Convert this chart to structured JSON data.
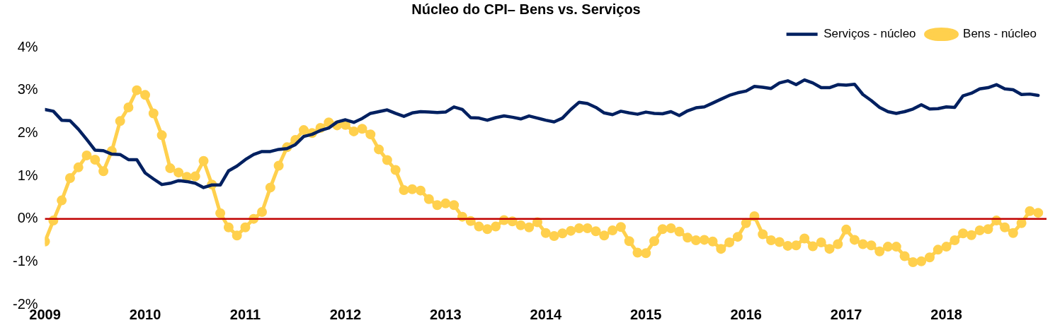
{
  "chart_data": {
    "type": "line",
    "title": "Núcleo do CPI– Bens vs. Serviços",
    "x": [
      "2009-01",
      "2009-02",
      "2009-03",
      "2009-04",
      "2009-05",
      "2009-06",
      "2009-07",
      "2009-08",
      "2009-09",
      "2009-10",
      "2009-11",
      "2009-12",
      "2010-01",
      "2010-02",
      "2010-03",
      "2010-04",
      "2010-05",
      "2010-06",
      "2010-07",
      "2010-08",
      "2010-09",
      "2010-10",
      "2010-11",
      "2010-12",
      "2011-01",
      "2011-02",
      "2011-03",
      "2011-04",
      "2011-05",
      "2011-06",
      "2011-07",
      "2011-08",
      "2011-09",
      "2011-10",
      "2011-11",
      "2011-12",
      "2012-01",
      "2012-02",
      "2012-03",
      "2012-04",
      "2012-05",
      "2012-06",
      "2012-07",
      "2012-08",
      "2012-09",
      "2012-10",
      "2012-11",
      "2012-12",
      "2013-01",
      "2013-02",
      "2013-03",
      "2013-04",
      "2013-05",
      "2013-06",
      "2013-07",
      "2013-08",
      "2013-09",
      "2013-10",
      "2013-11",
      "2013-12",
      "2014-01",
      "2014-02",
      "2014-03",
      "2014-04",
      "2014-05",
      "2014-06",
      "2014-07",
      "2014-08",
      "2014-09",
      "2014-10",
      "2014-11",
      "2014-12",
      "2015-01",
      "2015-02",
      "2015-03",
      "2015-04",
      "2015-05",
      "2015-06",
      "2015-07",
      "2015-08",
      "2015-09",
      "2015-10",
      "2015-11",
      "2015-12",
      "2016-01",
      "2016-02",
      "2016-03",
      "2016-04",
      "2016-05",
      "2016-06",
      "2016-07",
      "2016-08",
      "2016-09",
      "2016-10",
      "2016-11",
      "2016-12",
      "2017-01",
      "2017-02",
      "2017-03",
      "2017-04",
      "2017-05",
      "2017-06",
      "2017-07",
      "2017-08",
      "2017-09",
      "2017-10",
      "2017-11",
      "2017-12",
      "2018-01",
      "2018-02",
      "2018-03",
      "2018-04",
      "2018-05",
      "2018-06",
      "2018-07",
      "2018-08",
      "2018-09",
      "2018-10",
      "2018-11",
      "2018-12"
    ],
    "series": [
      {
        "name": "Serviços - núcleo",
        "color": "#002060",
        "marker": "none",
        "values": [
          2.55,
          2.51,
          2.3,
          2.29,
          2.09,
          1.85,
          1.6,
          1.59,
          1.51,
          1.5,
          1.38,
          1.38,
          1.07,
          0.93,
          0.8,
          0.83,
          0.89,
          0.87,
          0.83,
          0.73,
          0.79,
          0.79,
          1.12,
          1.23,
          1.38,
          1.5,
          1.57,
          1.57,
          1.62,
          1.64,
          1.73,
          1.92,
          1.97,
          2.06,
          2.12,
          2.26,
          2.31,
          2.25,
          2.34,
          2.46,
          2.5,
          2.54,
          2.46,
          2.39,
          2.47,
          2.5,
          2.49,
          2.48,
          2.49,
          2.61,
          2.55,
          2.36,
          2.35,
          2.3,
          2.36,
          2.4,
          2.37,
          2.33,
          2.4,
          2.35,
          2.3,
          2.26,
          2.35,
          2.55,
          2.72,
          2.69,
          2.6,
          2.47,
          2.43,
          2.51,
          2.47,
          2.44,
          2.49,
          2.46,
          2.45,
          2.5,
          2.41,
          2.52,
          2.59,
          2.61,
          2.7,
          2.79,
          2.88,
          2.94,
          2.98,
          3.09,
          3.07,
          3.04,
          3.17,
          3.22,
          3.13,
          3.24,
          3.17,
          3.06,
          3.06,
          3.13,
          3.12,
          3.14,
          2.9,
          2.76,
          2.6,
          2.5,
          2.46,
          2.5,
          2.56,
          2.66,
          2.56,
          2.57,
          2.61,
          2.6,
          2.87,
          2.93,
          3.03,
          3.06,
          3.13,
          3.03,
          3.01,
          2.9,
          2.91,
          2.88
        ]
      },
      {
        "name": "Bens - núcleo",
        "color": "#ffd04d",
        "marker": "circle",
        "values": [
          -0.53,
          -0.04,
          0.43,
          0.95,
          1.2,
          1.48,
          1.38,
          1.11,
          1.58,
          2.28,
          2.6,
          3.0,
          2.89,
          2.46,
          1.95,
          1.18,
          1.08,
          0.98,
          0.99,
          1.35,
          0.8,
          0.13,
          -0.2,
          -0.39,
          -0.2,
          0.0,
          0.16,
          0.73,
          1.24,
          1.67,
          1.84,
          2.07,
          2.0,
          2.12,
          2.25,
          2.18,
          2.19,
          2.04,
          2.1,
          1.97,
          1.62,
          1.37,
          1.14,
          0.67,
          0.69,
          0.66,
          0.46,
          0.32,
          0.36,
          0.32,
          0.05,
          -0.05,
          -0.18,
          -0.24,
          -0.18,
          -0.03,
          -0.06,
          -0.15,
          -0.2,
          -0.08,
          -0.33,
          -0.4,
          -0.34,
          -0.28,
          -0.22,
          -0.22,
          -0.29,
          -0.39,
          -0.27,
          -0.19,
          -0.52,
          -0.79,
          -0.8,
          -0.52,
          -0.24,
          -0.22,
          -0.3,
          -0.44,
          -0.5,
          -0.49,
          -0.53,
          -0.7,
          -0.55,
          -0.42,
          -0.1,
          0.06,
          -0.36,
          -0.5,
          -0.54,
          -0.63,
          -0.62,
          -0.46,
          -0.64,
          -0.55,
          -0.7,
          -0.59,
          -0.25,
          -0.49,
          -0.59,
          -0.62,
          -0.76,
          -0.65,
          -0.65,
          -0.87,
          -1.01,
          -0.99,
          -0.9,
          -0.72,
          -0.65,
          -0.5,
          -0.34,
          -0.38,
          -0.27,
          -0.24,
          -0.04,
          -0.2,
          -0.33,
          -0.1,
          0.18,
          0.14
        ]
      }
    ],
    "xlim": [
      "2009-01",
      "2019-01"
    ],
    "xticks": [
      "2009",
      "2010",
      "2011",
      "2012",
      "2013",
      "2014",
      "2015",
      "2016",
      "2017",
      "2018"
    ],
    "ylim": [
      -2,
      4
    ],
    "yticks": [
      {
        "value": -2,
        "label": "-2%"
      },
      {
        "value": -1,
        "label": "-1%"
      },
      {
        "value": 0,
        "label": "0%"
      },
      {
        "value": 1,
        "label": "1%"
      },
      {
        "value": 2,
        "label": "2%"
      },
      {
        "value": 3,
        "label": "3%"
      },
      {
        "value": 4,
        "label": "4%"
      }
    ],
    "ref_lines": [
      {
        "axis": "y",
        "value": 0,
        "color": "#c00000"
      }
    ],
    "legend": "top right",
    "grid": false
  }
}
